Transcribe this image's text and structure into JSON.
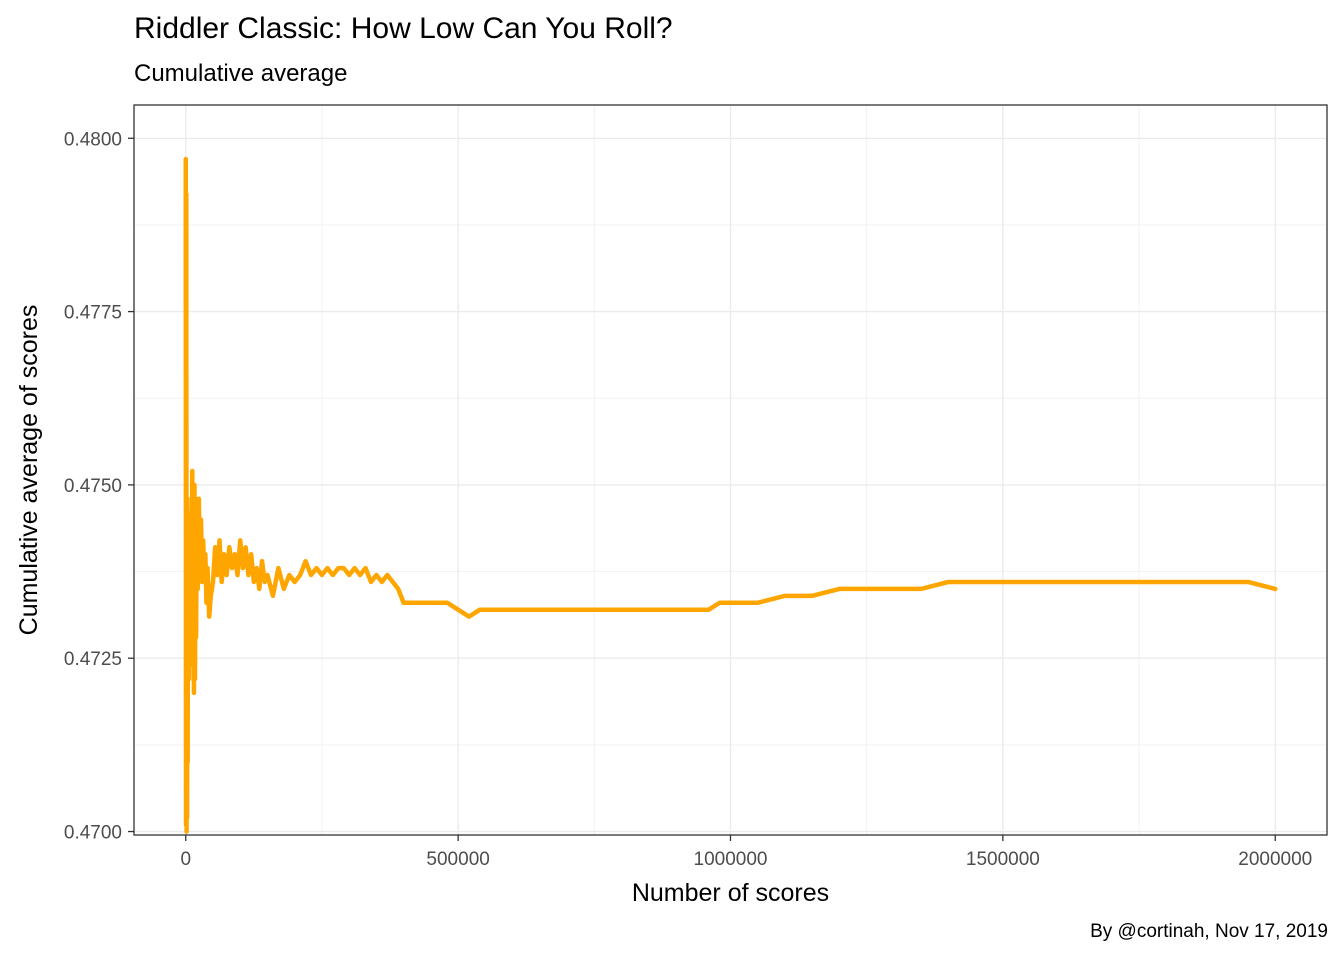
{
  "chart_data": {
    "type": "line",
    "title": "Riddler Classic: How Low Can You Roll?",
    "subtitle": "Cumulative average",
    "caption": "By @cortinah, Nov 17, 2019",
    "xlabel": "Number of scores",
    "ylabel": "Cumulative average of scores",
    "xlim": [
      -95000,
      2095000
    ],
    "ylim": [
      0.46995,
      0.48048
    ],
    "x_ticks": [
      0,
      500000,
      1000000,
      1500000,
      2000000
    ],
    "x_tick_labels": [
      "0",
      "500000",
      "1000000",
      "1500000",
      "2000000"
    ],
    "y_ticks": [
      0.47,
      0.4725,
      0.475,
      0.4775,
      0.48
    ],
    "y_tick_labels": [
      "0.4700",
      "0.4725",
      "0.4750",
      "0.4775",
      "0.4800"
    ],
    "grid": true,
    "line_color": "#FFA500",
    "series": [
      {
        "x": [
          0,
          500,
          1000,
          1500,
          2000,
          2500,
          3000,
          3500,
          4000,
          5000,
          6000,
          7000,
          8000,
          9000,
          10000,
          11000,
          12000,
          13000,
          14000,
          15000,
          16000,
          17000,
          18000,
          19000,
          20000,
          22000,
          24000,
          26000,
          28000,
          30000,
          32000,
          34000,
          36000,
          38000,
          40000,
          43000,
          46000,
          50000,
          54000,
          58000,
          62000,
          66000,
          70000,
          75000,
          80000,
          85000,
          90000,
          95000,
          100000,
          105000,
          110000,
          115000,
          120000,
          125000,
          130000,
          135000,
          140000,
          145000,
          150000,
          160000,
          170000,
          180000,
          190000,
          200000,
          210000,
          220000,
          230000,
          240000,
          250000,
          260000,
          270000,
          280000,
          290000,
          300000,
          310000,
          320000,
          330000,
          340000,
          350000,
          360000,
          370000,
          380000,
          390000,
          400000,
          420000,
          440000,
          460000,
          480000,
          500000,
          520000,
          540000,
          560000,
          580000,
          600000,
          620000,
          640000,
          660000,
          680000,
          700000,
          720000,
          740000,
          760000,
          780000,
          800000,
          820000,
          840000,
          860000,
          880000,
          900000,
          920000,
          940000,
          960000,
          980000,
          1000000,
          1050000,
          1100000,
          1150000,
          1200000,
          1250000,
          1300000,
          1350000,
          1400000,
          1450000,
          1500000,
          1550000,
          1600000,
          1650000,
          1700000,
          1750000,
          1800000,
          1850000,
          1900000,
          1950000,
          2000000
        ],
        "y": [
          0.4797,
          0.4701,
          0.4792,
          0.47,
          0.4745,
          0.4702,
          0.4748,
          0.471,
          0.4746,
          0.4735,
          0.4722,
          0.4742,
          0.4725,
          0.4728,
          0.4746,
          0.4735,
          0.4752,
          0.4724,
          0.4745,
          0.472,
          0.475,
          0.4722,
          0.4748,
          0.4728,
          0.4745,
          0.4735,
          0.4748,
          0.4738,
          0.4745,
          0.4736,
          0.4742,
          0.4737,
          0.474,
          0.4733,
          0.4738,
          0.4731,
          0.4734,
          0.4736,
          0.4741,
          0.4737,
          0.4742,
          0.4736,
          0.474,
          0.4737,
          0.4741,
          0.4738,
          0.474,
          0.4737,
          0.4742,
          0.4738,
          0.4741,
          0.4737,
          0.474,
          0.4736,
          0.4738,
          0.4735,
          0.4739,
          0.4736,
          0.4737,
          0.4734,
          0.4738,
          0.4735,
          0.4737,
          0.4736,
          0.4737,
          0.4739,
          0.4737,
          0.4738,
          0.4737,
          0.4738,
          0.4737,
          0.4738,
          0.4738,
          0.4737,
          0.4738,
          0.4737,
          0.4738,
          0.4736,
          0.4737,
          0.4736,
          0.4737,
          0.4736,
          0.4735,
          0.4733,
          0.4733,
          0.4733,
          0.4733,
          0.4733,
          0.4732,
          0.4731,
          0.4732,
          0.4732,
          0.4732,
          0.4732,
          0.4732,
          0.4732,
          0.4732,
          0.4732,
          0.4732,
          0.4732,
          0.4732,
          0.4732,
          0.4732,
          0.4732,
          0.4732,
          0.4732,
          0.4732,
          0.4732,
          0.4732,
          0.4732,
          0.4732,
          0.4732,
          0.4733,
          0.4733,
          0.4733,
          0.4734,
          0.4734,
          0.4735,
          0.4735,
          0.4735,
          0.4735,
          0.4736,
          0.4736,
          0.4736,
          0.4736,
          0.4736,
          0.4736,
          0.4736,
          0.4736,
          0.4736,
          0.4736,
          0.4736,
          0.4736,
          0.4735
        ]
      }
    ]
  }
}
